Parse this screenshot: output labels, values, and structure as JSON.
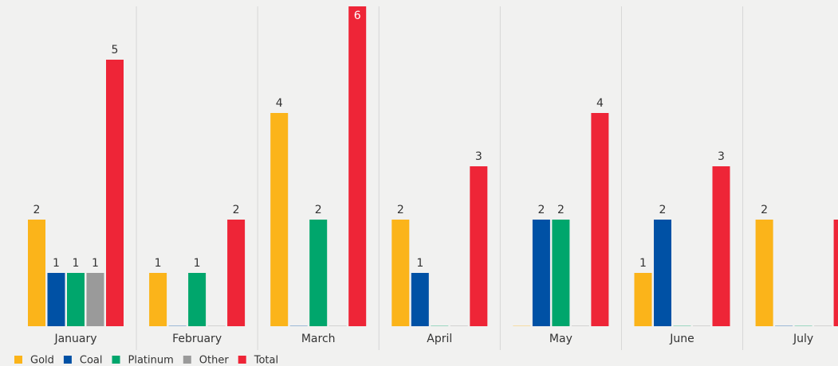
{
  "chart_data": {
    "type": "bar",
    "categories": [
      "January",
      "February",
      "March",
      "April",
      "May",
      "June",
      "July"
    ],
    "series": [
      {
        "name": "Gold",
        "color": "#fbb41a",
        "values": [
          2,
          1,
          4,
          2,
          0,
          1,
          2
        ]
      },
      {
        "name": "Coal",
        "color": "#0051a5",
        "values": [
          1,
          0,
          0,
          1,
          2,
          2,
          0
        ]
      },
      {
        "name": "Platinum",
        "color": "#00a66c",
        "values": [
          1,
          1,
          2,
          0,
          2,
          0,
          0
        ]
      },
      {
        "name": "Other",
        "color": "#9a9a9a",
        "values": [
          1,
          0,
          0,
          0,
          0,
          0,
          0
        ]
      },
      {
        "name": "Total",
        "color": "#ee2537",
        "values": [
          5,
          2,
          6,
          3,
          4,
          3,
          2
        ]
      }
    ],
    "ylim": [
      0,
      6
    ],
    "legend": "bottom-left"
  }
}
